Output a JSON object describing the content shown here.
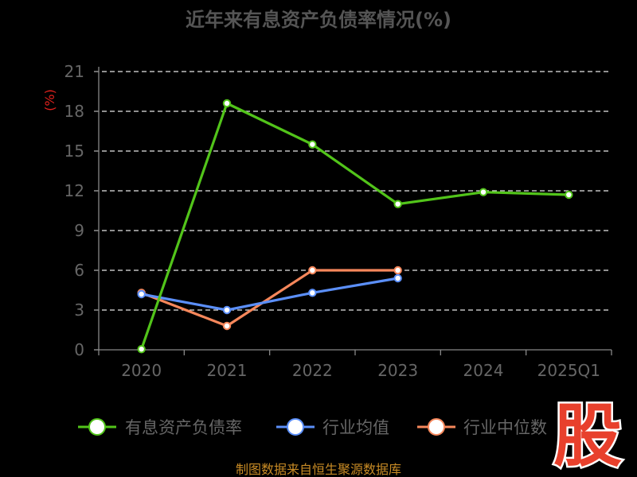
{
  "chart_data": {
    "type": "line",
    "title": "近年来有息资产负债率情况(%)",
    "ylabel": "(%)",
    "categories": [
      "2020",
      "2021",
      "2022",
      "2023",
      "2024",
      "2025Q1"
    ],
    "ylim": [
      0,
      21
    ],
    "yticks": [
      0,
      3,
      6,
      9,
      12,
      15,
      18,
      21
    ],
    "grid": true,
    "legend_position": "bottom",
    "series": [
      {
        "name": "有息资产负债率",
        "color": "#52c41a",
        "values": [
          0.05,
          18.6,
          15.5,
          11.0,
          11.9,
          11.7
        ]
      },
      {
        "name": "行业均值",
        "color": "#5b8ff9",
        "values": [
          4.2,
          3.0,
          4.3,
          5.4,
          null,
          null
        ]
      },
      {
        "name": "行业中位数",
        "color": "#f6875b",
        "values": [
          4.3,
          1.8,
          6.0,
          6.0,
          null,
          null
        ]
      }
    ]
  },
  "source_text": "制图数据来自恒生聚源数据库",
  "logo": {
    "char": "股",
    "color": "#e8402c"
  }
}
